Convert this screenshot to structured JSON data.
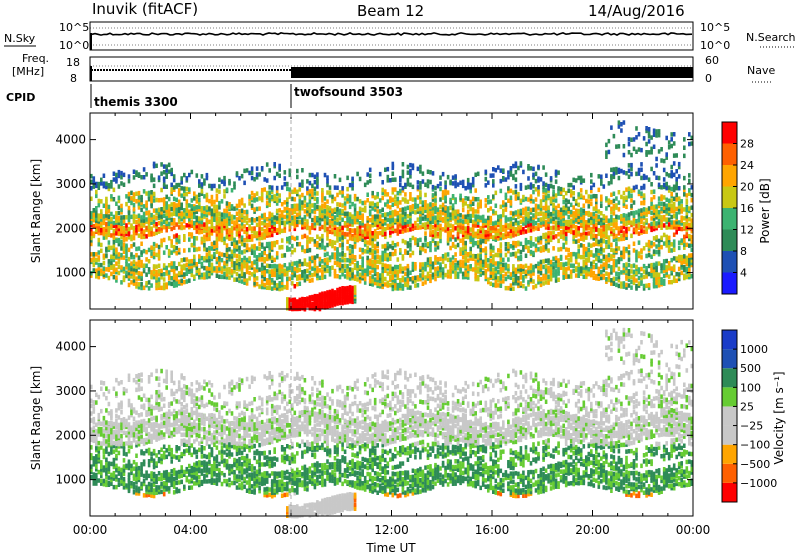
{
  "header": {
    "station": "Inuvik (fitACF)",
    "beam": "Beam 12",
    "date": "14/Aug/2016"
  },
  "panels": {
    "nsky": {
      "left_label": "N.Sky",
      "tick_top": "10^5",
      "tick_bottom": "10^0",
      "right_tick_top": "10^5",
      "right_tick_bottom": "10^0",
      "right_label": "N.Search"
    },
    "freq": {
      "left_label_1": "Freq.",
      "left_label_2": "[MHz]",
      "tick_top": "18",
      "tick_bottom": "8",
      "right_tick_top": "60",
      "right_tick_bottom": "0",
      "right_label": "Nave"
    },
    "cpid": {
      "label": "CPID",
      "modes": [
        "themis 3300",
        "twofsound 3503"
      ]
    }
  },
  "colors": {
    "power": [
      "#1a1aff",
      "#1e50b4",
      "#2e8b57",
      "#3cb371",
      "#c8c814",
      "#ffa500",
      "#ff6000",
      "#ff0000"
    ],
    "velocity": [
      "#ff0000",
      "#ff6000",
      "#ffa500",
      "#c8c8c8",
      "#c8c8c8",
      "#66cc33",
      "#2e8b57",
      "#1e50b4",
      "#1a3cc8"
    ]
  },
  "chart_data": [
    {
      "type": "heatmap",
      "panel": "power",
      "title": "",
      "xlabel": "Time UT",
      "ylabel": "Slant Range [km]",
      "x_ticks": [
        "00:00",
        "04:00",
        "08:00",
        "12:00",
        "16:00",
        "20:00",
        "00:00"
      ],
      "y_ticks": [
        "1000",
        "2000",
        "3000",
        "4000"
      ],
      "ylim": [
        180,
        4600
      ],
      "xlim_hours": [
        0,
        24
      ],
      "colorbar_label": "Power [dB]",
      "colorbar_ticks": [
        "4",
        "8",
        "12",
        "16",
        "20",
        "24",
        "28"
      ],
      "colorbar_range": [
        0,
        32
      ]
    },
    {
      "type": "heatmap",
      "panel": "velocity",
      "title": "",
      "xlabel": "Time UT",
      "ylabel": "Slant Range [km]",
      "x_ticks": [
        "00:00",
        "04:00",
        "08:00",
        "12:00",
        "16:00",
        "20:00",
        "00:00"
      ],
      "y_ticks": [
        "1000",
        "2000",
        "3000",
        "4000"
      ],
      "ylim": [
        180,
        4600
      ],
      "xlim_hours": [
        0,
        24
      ],
      "colorbar_label": "Velocity [m s⁻¹]",
      "colorbar_ticks": [
        "1000",
        "500",
        "100",
        "25",
        "−25",
        "−100",
        "−500",
        "−1000"
      ]
    }
  ]
}
